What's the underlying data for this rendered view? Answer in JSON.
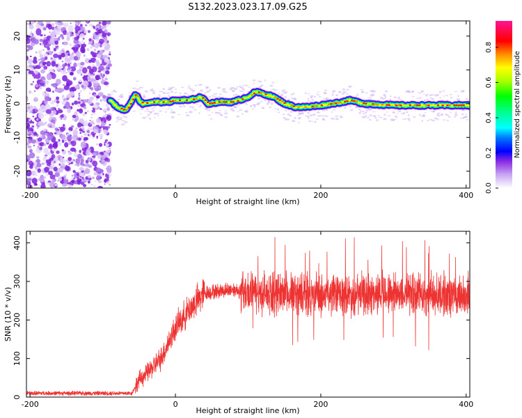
{
  "title": "S132.2023.023.17.09.G25",
  "chart_data": [
    {
      "type": "heatmap",
      "xlabel": "Height of straight line (km)",
      "ylabel": "Frequency (Hz)",
      "xlim": [
        -205,
        405
      ],
      "ylim": [
        -25,
        24.5
      ],
      "xticks": [
        -200,
        0,
        200,
        400
      ],
      "yticks": [
        -20,
        -10,
        0,
        10,
        20
      ],
      "colorbar": {
        "label": "Normalized spectral amplitude",
        "range": [
          0,
          0.95
        ],
        "ticks": [
          0.0,
          0.2,
          0.4,
          0.6,
          0.8
        ],
        "colors": [
          "#ffffff",
          "#c9a6f2",
          "#8a2be2",
          "#0000ff",
          "#00ffff",
          "#00ff00",
          "#ffff00",
          "#ff8c00",
          "#ff0000",
          "#ff1493"
        ]
      },
      "noise_region": {
        "x": [
          -205,
          -90
        ],
        "y": [
          -25,
          24.5
        ]
      },
      "ridge": {
        "x": [
          -90,
          -80,
          -70,
          -65,
          -55,
          -50,
          -45,
          -30,
          -10,
          0,
          20,
          35,
          45,
          60,
          80,
          100,
          110,
          120,
          135,
          150,
          165,
          180,
          200,
          230,
          240,
          260,
          300,
          340,
          370,
          405
        ],
        "y": [
          1,
          -1,
          -2,
          -1,
          3,
          1,
          0,
          0.5,
          0.5,
          1,
          1,
          2,
          0,
          0.5,
          0.5,
          2,
          3.5,
          3,
          2,
          0,
          -1,
          -1,
          -0.5,
          0.5,
          1,
          0,
          -0.5,
          -0.5,
          -0.5,
          -0.5
        ]
      }
    },
    {
      "type": "line",
      "xlabel": "Height of straight line (km)",
      "ylabel": "SNR (10 * v/v)",
      "xlim": [
        -205,
        405
      ],
      "ylim": [
        0,
        430
      ],
      "xticks": [
        -200,
        0,
        200,
        400
      ],
      "yticks": [
        0,
        100,
        200,
        300,
        400
      ],
      "color": "#ee3333",
      "trend": {
        "x": [
          -205,
          -60,
          -50,
          -40,
          -20,
          0,
          20,
          40,
          80,
          100,
          150,
          200,
          250,
          300,
          350,
          405
        ],
        "y": [
          10,
          10,
          45,
          60,
          100,
          180,
          230,
          270,
          280,
          270,
          270,
          265,
          265,
          270,
          265,
          265
        ]
      }
    }
  ]
}
